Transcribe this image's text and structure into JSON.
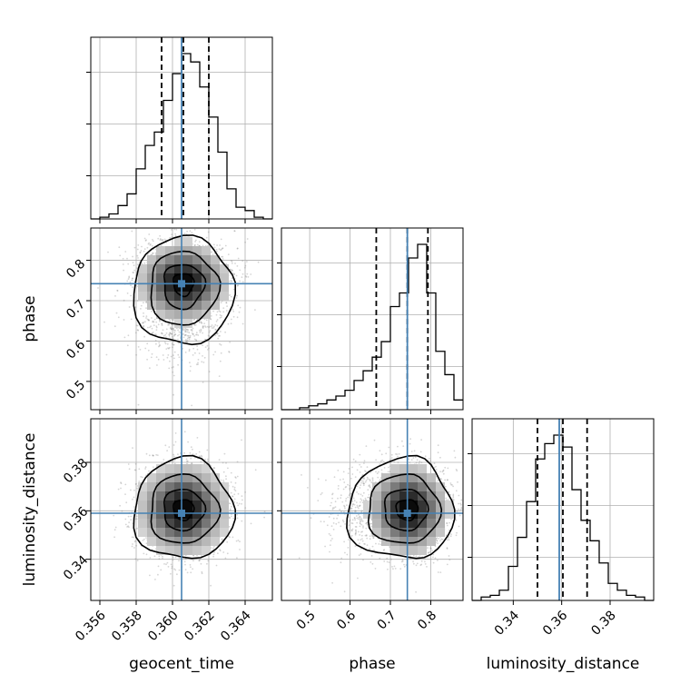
{
  "chart_data": {
    "type": "corner",
    "parameters": [
      "geocent_time",
      "phase",
      "luminosity_distance"
    ],
    "axis_labels": {
      "geocent_time": "geocent_time",
      "phase": "phase",
      "luminosity_distance": "luminosity_distance"
    },
    "ranges": {
      "geocent_time": [
        0.3555,
        0.3655
      ],
      "phase": [
        0.43,
        0.88
      ],
      "luminosity_distance": [
        0.323,
        0.398
      ]
    },
    "ticks": {
      "geocent_time": [
        "0.356",
        "0.358",
        "0.360",
        "0.362",
        "0.364"
      ],
      "phase": [
        "0.5",
        "0.6",
        "0.7",
        "0.8"
      ],
      "luminosity_distance": [
        "0.34",
        "0.36",
        "0.38"
      ]
    },
    "tick_values": {
      "geocent_time": [
        0.356,
        0.358,
        0.36,
        0.362,
        0.364
      ],
      "phase": [
        0.5,
        0.6,
        0.7,
        0.8
      ],
      "luminosity_distance": [
        0.34,
        0.36,
        0.38
      ]
    },
    "truth": {
      "geocent_time": 0.3605,
      "phase": 0.742,
      "luminosity_distance": 0.359
    },
    "quantiles": {
      "geocent_time": [
        0.3594,
        0.3606,
        0.362
      ],
      "phase": [
        0.665,
        0.742,
        0.793
      ],
      "luminosity_distance": [
        0.35,
        0.3605,
        0.3705
      ]
    },
    "histograms": {
      "geocent_time": {
        "bin_edges": [
          0.3555,
          0.356,
          0.3565,
          0.357,
          0.3575,
          0.358,
          0.3585,
          0.359,
          0.3595,
          0.36,
          0.3605,
          0.361,
          0.3615,
          0.362,
          0.3625,
          0.363,
          0.3635,
          0.364,
          0.3645,
          0.365,
          0.3655
        ],
        "counts": [
          0,
          0.01,
          0.03,
          0.08,
          0.15,
          0.3,
          0.44,
          0.52,
          0.71,
          0.87,
          0.99,
          0.94,
          0.79,
          0.61,
          0.4,
          0.18,
          0.07,
          0.05,
          0.01,
          0
        ]
      },
      "phase": {
        "bin_edges": [
          0.43,
          0.4525,
          0.475,
          0.4975,
          0.52,
          0.5425,
          0.565,
          0.5875,
          0.61,
          0.6325,
          0.655,
          0.6775,
          0.7,
          0.7225,
          0.745,
          0.7675,
          0.79,
          0.8125,
          0.835,
          0.8575,
          0.88
        ],
        "counts": [
          0,
          0,
          0.01,
          0.02,
          0.03,
          0.05,
          0.07,
          0.1,
          0.15,
          0.2,
          0.27,
          0.35,
          0.53,
          0.6,
          0.78,
          0.85,
          0.6,
          0.3,
          0.18,
          0.05
        ]
      },
      "luminosity_distance": {
        "bin_edges": [
          0.323,
          0.32675,
          0.3305,
          0.33425,
          0.338,
          0.34175,
          0.3455,
          0.34925,
          0.353,
          0.35675,
          0.3605,
          0.36425,
          0.368,
          0.37175,
          0.3755,
          0.37925,
          0.383,
          0.38675,
          0.3905,
          0.39425,
          0.398
        ],
        "counts": [
          0,
          0.02,
          0.03,
          0.06,
          0.2,
          0.37,
          0.58,
          0.83,
          0.92,
          0.97,
          0.9,
          0.65,
          0.47,
          0.35,
          0.22,
          0.1,
          0.06,
          0.03,
          0.02,
          0
        ]
      }
    },
    "grid": true
  }
}
